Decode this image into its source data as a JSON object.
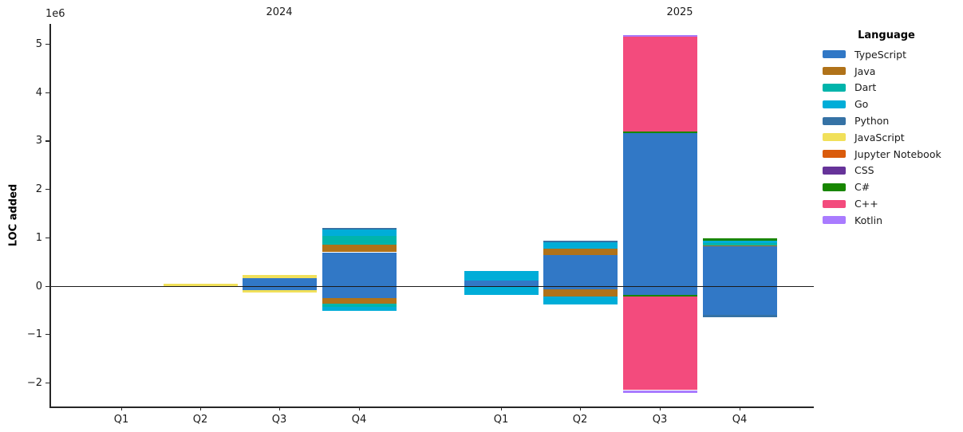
{
  "figure": {
    "ylabel": "LOC added",
    "offset_label": "1e6",
    "legend_title": "Language"
  },
  "chart_data": {
    "type": "bar",
    "variant": "diverging-stacked",
    "unit": "millions of lines (1e6)",
    "title": "",
    "ylabel": "LOC added",
    "y_offset_text": "1e6",
    "grid": false,
    "legend_position": "right-outside",
    "legend_title": "Language",
    "groups": [
      {
        "title": "2024",
        "categories": [
          "Q1",
          "Q2",
          "Q3",
          "Q4"
        ]
      },
      {
        "title": "2025",
        "categories": [
          "Q1",
          "Q2",
          "Q3",
          "Q4"
        ]
      }
    ],
    "columns": [
      "2024 Q1",
      "2024 Q2",
      "2024 Q3",
      "2024 Q4",
      "2025 Q1",
      "2025 Q2",
      "2025 Q3",
      "2025 Q4"
    ],
    "ylim": [
      -2.49,
      5.42
    ],
    "yticks": [
      -2,
      -1,
      0,
      1,
      2,
      3,
      4,
      5
    ],
    "ytick_labels": [
      "−2",
      "−1",
      "0",
      "1",
      "2",
      "3",
      "4",
      "5"
    ],
    "series": [
      {
        "name": "TypeScript",
        "color": "#3178c6",
        "added": [
          0,
          0,
          0.16,
          0.7,
          0.12,
          0.64,
          3.17,
          0.82
        ],
        "removed": [
          0,
          0,
          -0.08,
          -0.25,
          0,
          -0.07,
          -0.18,
          -0.6
        ]
      },
      {
        "name": "Java",
        "color": "#b07219",
        "added": [
          0,
          0,
          0,
          0.15,
          0,
          0.13,
          0,
          0.02
        ],
        "removed": [
          0,
          0,
          0,
          -0.11,
          0,
          -0.15,
          0,
          0
        ]
      },
      {
        "name": "Dart",
        "color": "#00b4ab",
        "added": [
          0,
          0,
          0,
          0.18,
          0,
          0,
          0,
          0.05
        ],
        "removed": [
          0,
          0,
          0,
          -0.07,
          0,
          0,
          0,
          0
        ]
      },
      {
        "name": "Go",
        "color": "#00add8",
        "added": [
          0,
          0,
          0,
          0.14,
          0.19,
          0.14,
          0,
          0.05
        ],
        "removed": [
          0,
          0,
          0,
          -0.08,
          -0.18,
          -0.16,
          0,
          0
        ]
      },
      {
        "name": "Python",
        "color": "#3572a5",
        "added": [
          0,
          0,
          0,
          0.04,
          0,
          0.03,
          0,
          0
        ],
        "removed": [
          0,
          0,
          0,
          0,
          0,
          0,
          0,
          -0.04
        ]
      },
      {
        "name": "JavaScript",
        "color": "#f1e05a",
        "added": [
          0,
          0.05,
          0.07,
          0,
          0,
          0,
          0,
          0
        ],
        "removed": [
          0,
          0,
          -0.05,
          0,
          0,
          0,
          0,
          0
        ]
      },
      {
        "name": "Jupyter Notebook",
        "color": "#da5b0b",
        "added": [
          0,
          0,
          0,
          0,
          0,
          0,
          0,
          0
        ],
        "removed": [
          0,
          0,
          0,
          0,
          0,
          0,
          0,
          0
        ]
      },
      {
        "name": "CSS",
        "color": "#663399",
        "added": [
          0,
          0,
          0,
          0,
          0,
          0,
          0,
          0
        ],
        "removed": [
          0,
          0,
          0,
          0,
          0,
          0,
          0,
          0
        ]
      },
      {
        "name": "C#",
        "color": "#178600",
        "added": [
          0,
          0,
          0,
          0,
          0,
          0,
          0.03,
          0.05
        ],
        "removed": [
          0,
          0,
          0,
          0,
          0,
          0,
          -0.03,
          0
        ]
      },
      {
        "name": "C++",
        "color": "#f34b7d",
        "added": [
          0,
          0,
          0,
          0,
          0,
          0,
          1.95,
          0
        ],
        "removed": [
          0,
          0,
          0,
          0,
          0,
          0,
          -1.94,
          0
        ]
      },
      {
        "name": "Kotlin",
        "color": "#a97bff",
        "added": [
          0,
          0,
          0,
          0,
          0,
          0,
          0.04,
          0
        ],
        "removed": [
          0,
          0,
          0,
          0,
          0,
          0,
          -0.05,
          0
        ]
      }
    ]
  }
}
